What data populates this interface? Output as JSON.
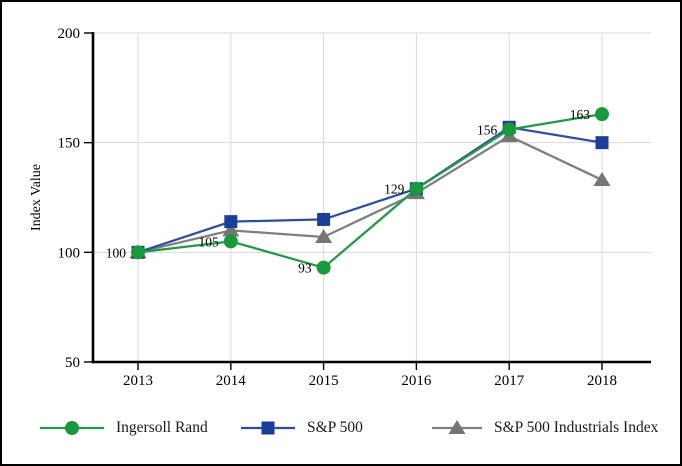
{
  "figure": {
    "background": "#ffffff",
    "border_color": "#000000"
  },
  "chart_data": {
    "type": "line",
    "title": "",
    "xlabel": "",
    "ylabel": "Index Value",
    "ylim": [
      50,
      200
    ],
    "yticks": [
      "50",
      "100",
      "150",
      "200"
    ],
    "categories": [
      "2013",
      "2014",
      "2015",
      "2016",
      "2017",
      "2018"
    ],
    "grid": true,
    "legend_position": "bottom",
    "axis_color": "#000000",
    "gridline_color": "#d9d9d9",
    "data_label_color": "#000000",
    "series": [
      {
        "name": "Ingersoll Rand",
        "marker": "circle",
        "color": "#189a3c",
        "line_color": "#1f9b43",
        "values": [
          100,
          105,
          93,
          129,
          156,
          163
        ],
        "data_labels": [
          "100",
          "105",
          "93",
          "129",
          "156",
          "163"
        ]
      },
      {
        "name": "S&P 500",
        "marker": "square",
        "color": "#1b3e9a",
        "line_color": "#2c4fa3",
        "values": [
          100,
          114,
          115,
          129,
          157,
          150
        ],
        "data_labels": []
      },
      {
        "name": "S&P 500 Industrials Index",
        "marker": "triangle",
        "color": "#757575",
        "line_color": "#7f7f7f",
        "values": [
          100,
          110,
          107,
          127,
          153,
          133
        ],
        "data_labels": []
      }
    ]
  }
}
